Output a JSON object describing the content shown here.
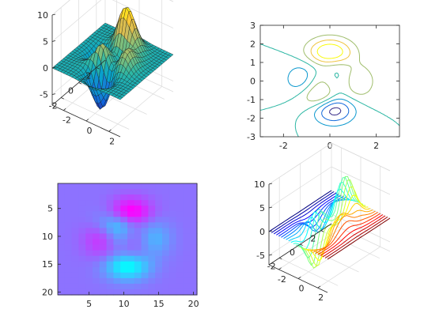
{
  "chart_data": [
    {
      "type": "surface",
      "title": "",
      "xlim": [
        -3,
        3
      ],
      "ylim": [
        -3,
        3
      ],
      "zlim": [
        -7,
        10
      ],
      "x_ticks": [
        -2,
        0,
        2
      ],
      "y_ticks": [
        -2,
        0,
        2
      ],
      "z_ticks": [
        -5,
        0,
        5,
        10
      ],
      "x_tick_labels": [
        "-2",
        "0",
        "2"
      ],
      "y_tick_labels": [
        "-2",
        "0",
        "2"
      ],
      "z_tick_labels": [
        "-5",
        "0",
        "5",
        "10"
      ],
      "grid": true,
      "colormap": "parula",
      "colormap_stops": [
        "#352a87",
        "#0f5cdd",
        "#1481d6",
        "#06a4ca",
        "#2eb7a4",
        "#87bf77",
        "#d1bb59",
        "#fec832",
        "#f9fb0e"
      ],
      "function": "peaks",
      "grid_size": 25
    },
    {
      "type": "contour",
      "title": "",
      "xlim": [
        -3,
        3
      ],
      "ylim": [
        -3,
        3
      ],
      "x_ticks": [
        -2,
        0,
        2
      ],
      "y_ticks": [
        -3,
        -2,
        -1,
        0,
        1,
        2,
        3
      ],
      "x_tick_labels": [
        "-2",
        "0",
        "2"
      ],
      "y_tick_labels": [
        "-3",
        "-2",
        "-1",
        "0",
        "1",
        "2",
        "3"
      ],
      "levels": [
        -6,
        -4,
        -2,
        0,
        2,
        4,
        6
      ],
      "colormap": "parula",
      "function": "peaks"
    },
    {
      "type": "heatmap",
      "title": "",
      "xlim": [
        0.5,
        20.5
      ],
      "ylim": [
        0.5,
        20.5
      ],
      "x_ticks": [
        5,
        10,
        15,
        20
      ],
      "y_ticks": [
        5,
        10,
        15,
        20
      ],
      "x_tick_labels": [
        "5",
        "10",
        "15",
        "20"
      ],
      "y_tick_labels": [
        "5",
        "10",
        "15",
        "20"
      ],
      "y_reversed": true,
      "colormap": "cool",
      "colormap_stops": [
        "#00ffff",
        "#ff00ff"
      ],
      "background_color": "#7d7dff",
      "function": "peaks",
      "grid_size": 20
    },
    {
      "type": "waterfall",
      "title": "",
      "xlim": [
        -3,
        3
      ],
      "ylim": [
        -3,
        3
      ],
      "zlim": [
        -7,
        10
      ],
      "x_ticks": [
        -2,
        0,
        2
      ],
      "y_ticks": [
        -2,
        0,
        2
      ],
      "z_ticks": [
        -5,
        0,
        5,
        10
      ],
      "x_tick_labels": [
        "-2",
        "0",
        "2"
      ],
      "y_tick_labels": [
        "-2",
        "0",
        "2"
      ],
      "z_tick_labels": [
        "-5",
        "0",
        "5",
        "10"
      ],
      "colormap": "jet",
      "function": "peaks",
      "grid_size": 25
    }
  ]
}
